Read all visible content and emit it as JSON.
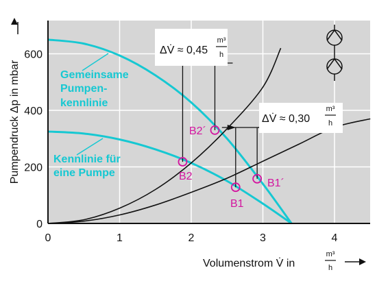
{
  "chart_data": {
    "type": "line",
    "xlim": [
      0,
      4.5
    ],
    "ylim": [
      0,
      650
    ],
    "x_ticks": [
      "0",
      "1",
      "2",
      "3",
      "4"
    ],
    "y_ticks": [
      "0",
      "200",
      "400",
      "600"
    ],
    "x_tick_values": [
      0,
      1,
      2,
      3,
      4
    ],
    "y_tick_values": [
      0,
      200,
      400,
      600
    ],
    "grid": true,
    "xlabel": {
      "main": "Volumenstrom V̇ in",
      "unit_num": "m³",
      "unit_den": "h"
    },
    "ylabel": "Pumpendruck Δp in mbar",
    "series": [
      {
        "name": "Gemeinsame Pumpenkennlinie",
        "color": "#16c8d2",
        "x": [
          0,
          0.5,
          1,
          1.5,
          2,
          2.5,
          3,
          3.4
        ],
        "y": [
          650,
          636,
          594,
          524,
          428,
          300,
          140,
          0
        ]
      },
      {
        "name": "Kennlinie für eine Pumpe",
        "color": "#16c8d2",
        "x": [
          0,
          0.5,
          1,
          1.5,
          2,
          2.5,
          3,
          3.4
        ],
        "y": [
          325,
          318,
          297,
          262,
          214,
          150,
          70,
          0
        ]
      },
      {
        "name": "",
        "color": "#111111",
        "x": [
          0,
          0.5,
          1,
          1.5,
          2,
          2.5,
          3,
          3.25
        ],
        "y": [
          0,
          13,
          54,
          120,
          214,
          335,
          482,
          620
        ]
      },
      {
        "name": "",
        "color": "#111111",
        "x": [
          0,
          0.5,
          1,
          1.5,
          2,
          2.5,
          3,
          3.5,
          4,
          4.5
        ],
        "y": [
          0,
          7,
          26,
          60,
          107,
          167,
          240,
          326,
          424,
          367
        ]
      }
    ],
    "points": [
      {
        "label": "B2",
        "x": 1.88,
        "y": 218
      },
      {
        "label": "B2´",
        "x": 2.33,
        "y": 330
      },
      {
        "label": "B1",
        "x": 2.62,
        "y": 128
      },
      {
        "label": "B1´",
        "x": 2.92,
        "y": 158
      }
    ],
    "annotations": {
      "delta_top": {
        "prefix": "ΔV̇ ≈ 0,45",
        "unit_num": "m³",
        "unit_den": "h",
        "x_from": 1.88,
        "x_to": 2.33
      },
      "delta_right": {
        "prefix": "ΔV̇ ≈ 0,30",
        "unit_num": "m³",
        "unit_den": "h",
        "x_from": 2.62,
        "x_to": 2.92
      },
      "label_combined": [
        "Gemeinsame",
        "Pumpen-",
        "kennlinie"
      ],
      "label_single": [
        "Kennlinie für",
        "eine Pumpe"
      ]
    }
  }
}
